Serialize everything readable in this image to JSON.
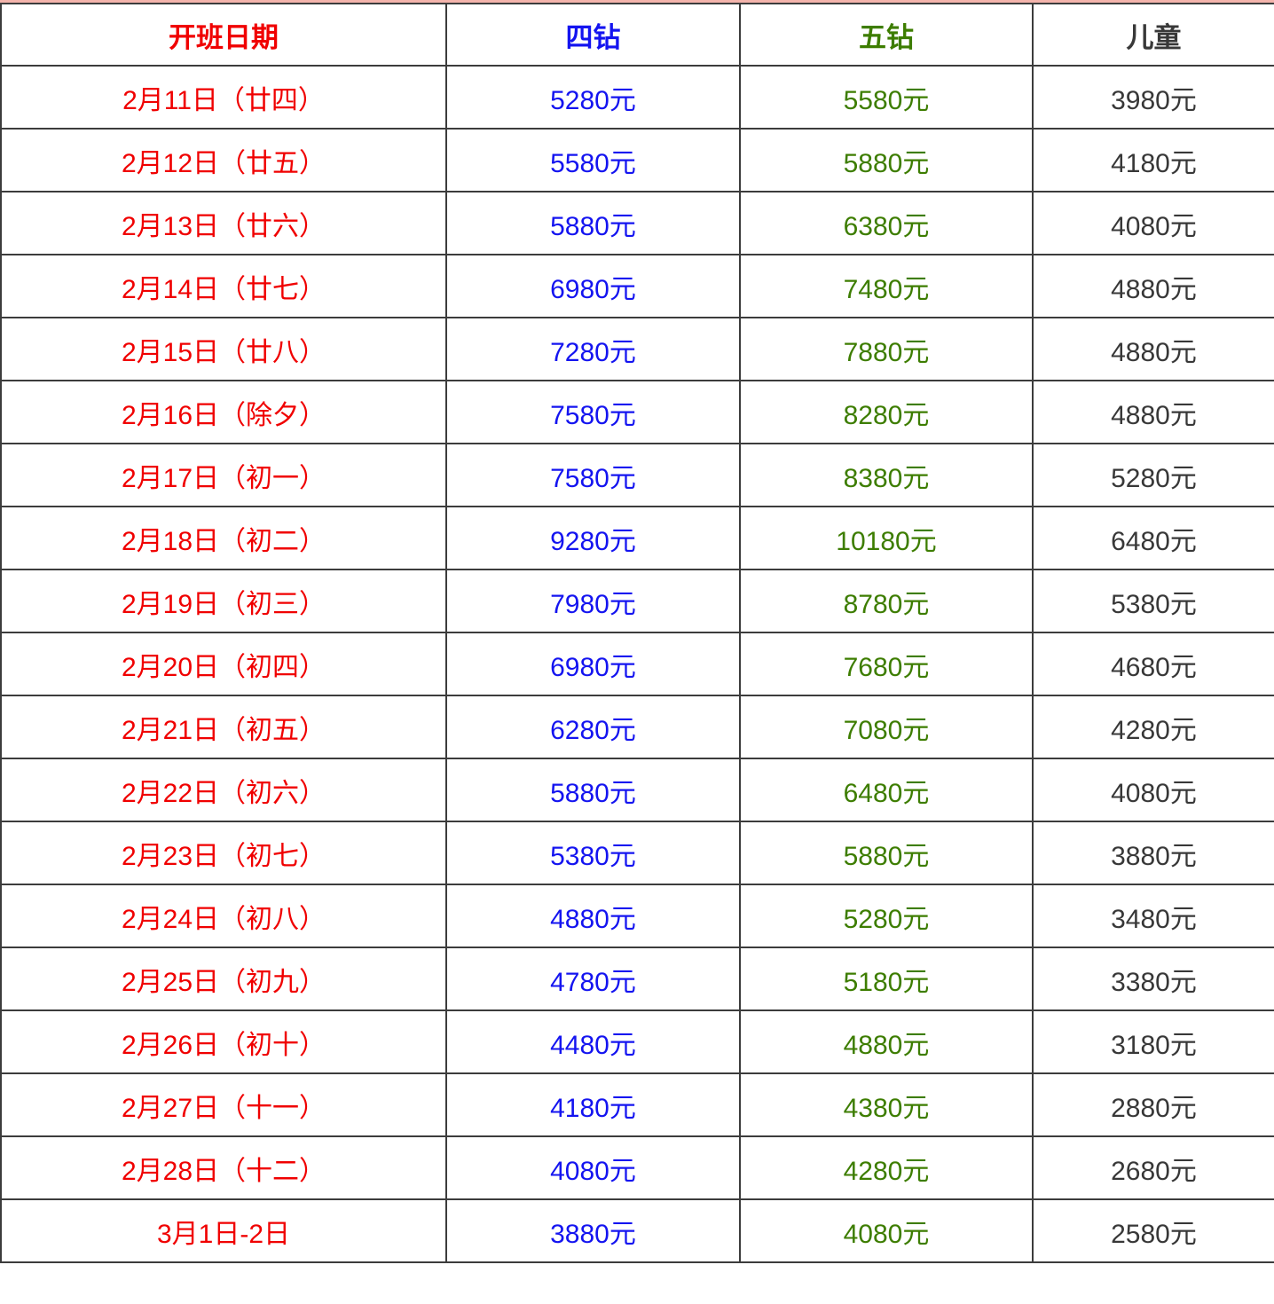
{
  "colors": {
    "date": "#f00000",
    "four_diamond": "#1414f0",
    "five_diamond": "#3d7d00",
    "child": "#383838"
  },
  "headers": [
    "开班日期",
    "四钻",
    "五钻",
    "儿童"
  ],
  "rows": [
    [
      "2月11日（廿四）",
      "5280元",
      "5580元",
      "3980元"
    ],
    [
      "2月12日（廿五）",
      "5580元",
      "5880元",
      "4180元"
    ],
    [
      "2月13日（廿六）",
      "5880元",
      "6380元",
      "4080元"
    ],
    [
      "2月14日（廿七）",
      "6980元",
      "7480元",
      "4880元"
    ],
    [
      "2月15日（廿八）",
      "7280元",
      "7880元",
      "4880元"
    ],
    [
      "2月16日（除夕）",
      "7580元",
      "8280元",
      "4880元"
    ],
    [
      "2月17日（初一）",
      "7580元",
      "8380元",
      "5280元"
    ],
    [
      "2月18日（初二）",
      "9280元",
      "10180元",
      "6480元"
    ],
    [
      "2月19日（初三）",
      "7980元",
      "8780元",
      "5380元"
    ],
    [
      "2月20日（初四）",
      "6980元",
      "7680元",
      "4680元"
    ],
    [
      "2月21日（初五）",
      "6280元",
      "7080元",
      "4280元"
    ],
    [
      "2月22日（初六）",
      "5880元",
      "6480元",
      "4080元"
    ],
    [
      "2月23日（初七）",
      "5380元",
      "5880元",
      "3880元"
    ],
    [
      "2月24日（初八）",
      "4880元",
      "5280元",
      "3480元"
    ],
    [
      "2月25日（初九）",
      "4780元",
      "5180元",
      "3380元"
    ],
    [
      "2月26日（初十）",
      "4480元",
      "4880元",
      "3180元"
    ],
    [
      "2月27日（十一）",
      "4180元",
      "4380元",
      "2880元"
    ],
    [
      "2月28日（十二）",
      "4080元",
      "4280元",
      "2680元"
    ],
    [
      "3月1日-2日",
      "3880元",
      "4080元",
      "2580元"
    ]
  ]
}
